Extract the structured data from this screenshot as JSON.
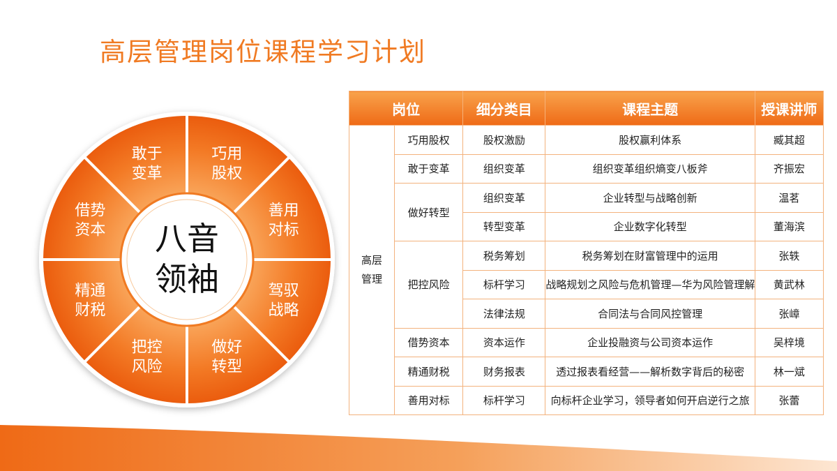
{
  "title": "高层管理岗位课程学习计划",
  "wheel": {
    "center": [
      "八音",
      "领袖"
    ],
    "segments": [
      {
        "lines": [
          "巧用",
          "股权"
        ]
      },
      {
        "lines": [
          "善用",
          "对标"
        ]
      },
      {
        "lines": [
          "驾驭",
          "战略"
        ]
      },
      {
        "lines": [
          "做好",
          "转型"
        ]
      },
      {
        "lines": [
          "把控",
          "风险"
        ]
      },
      {
        "lines": [
          "精通",
          "财税"
        ]
      },
      {
        "lines": [
          "借势",
          "资本"
        ]
      },
      {
        "lines": [
          "敢于",
          "变革"
        ]
      }
    ],
    "colors": {
      "outer": "#ef6a16",
      "inner": "#f8a24b",
      "ring": "#f07a22"
    }
  },
  "table": {
    "headers": [
      "岗位",
      "细分类目",
      "课程主题",
      "授课讲师"
    ],
    "role": "高层\n管理",
    "groups": [
      {
        "position": "巧用股权",
        "rows": [
          {
            "category": "股权激励",
            "topic": "股权赢利体系",
            "lecturer": "臧其超"
          }
        ]
      },
      {
        "position": "敢于变革",
        "rows": [
          {
            "category": "组织变革",
            "topic": "组织变革组织熵变八板斧",
            "lecturer": "齐振宏"
          }
        ]
      },
      {
        "position": "做好转型",
        "rows": [
          {
            "category": "组织变革",
            "topic": "企业转型与战略创新",
            "lecturer": "温茗"
          },
          {
            "category": "转型变革",
            "topic": "企业数字化转型",
            "lecturer": "董海滨"
          }
        ]
      },
      {
        "position": "把控风险",
        "rows": [
          {
            "category": "税务筹划",
            "topic": "税务筹划在财富管理中的运用",
            "lecturer": "张轶"
          },
          {
            "category": "标杆学习",
            "topic": "战略规划之风险与危机管理—华为风险管理解析",
            "lecturer": "黄武林"
          },
          {
            "category": "法律法规",
            "topic": "合同法与合同风控管理",
            "lecturer": "张嶂"
          }
        ]
      },
      {
        "position": "借势资本",
        "rows": [
          {
            "category": "资本运作",
            "topic": "企业投融资与公司资本运作",
            "lecturer": "吴梓境"
          }
        ]
      },
      {
        "position": "精通财税",
        "rows": [
          {
            "category": "财务报表",
            "topic": "透过报表看经营——解析数字背后的秘密",
            "lecturer": "林一斌"
          }
        ]
      },
      {
        "position": "善用对标",
        "rows": [
          {
            "category": "标杆学习",
            "topic": "向标杆企业学习，领导者如何开启逆行之旅",
            "lecturer": "张蕾"
          }
        ]
      }
    ]
  }
}
